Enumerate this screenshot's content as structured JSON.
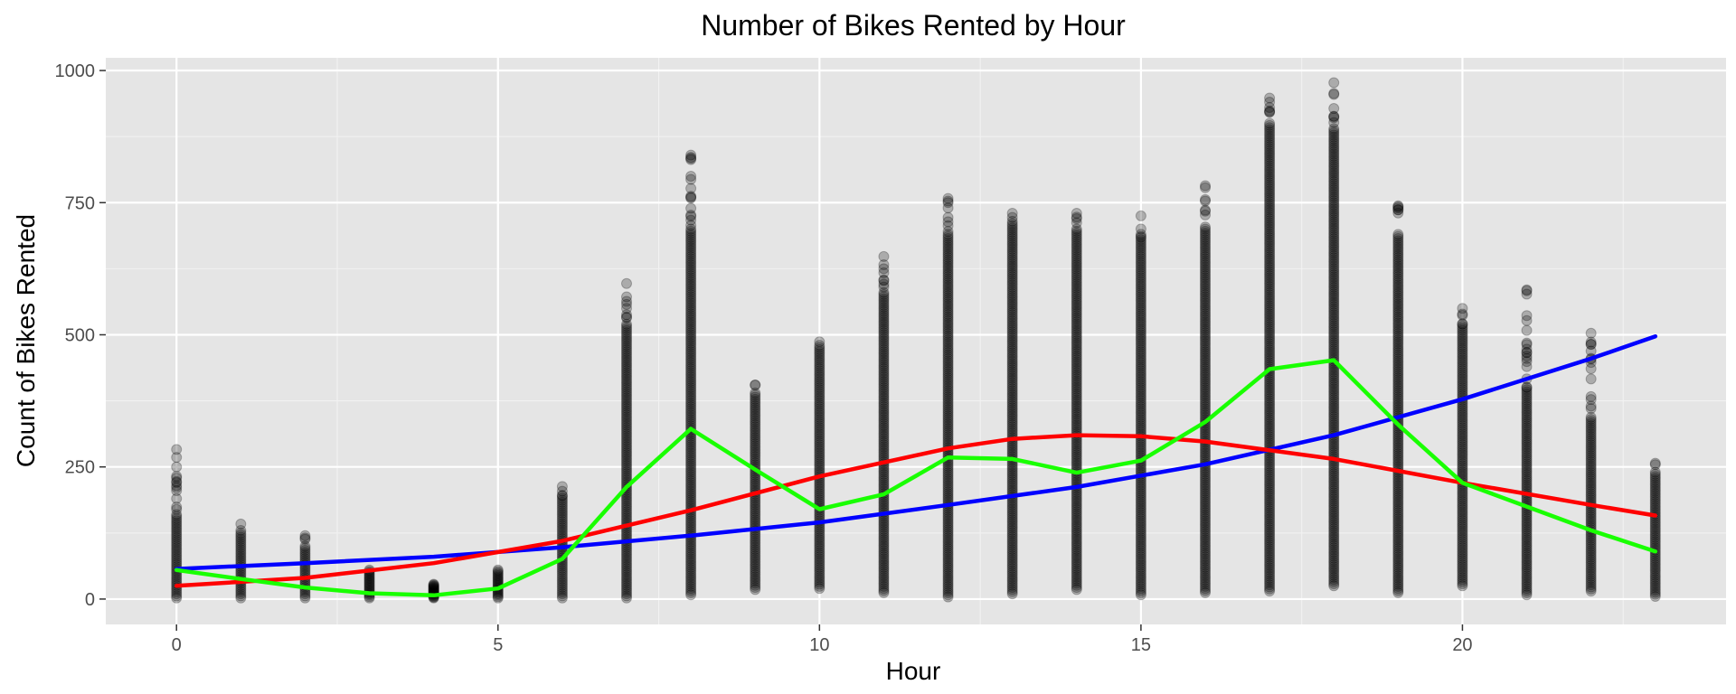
{
  "chart_data": {
    "type": "scatter",
    "title": "Number of Bikes Rented by Hour",
    "xlabel": "Hour",
    "ylabel": "Count of Bikes Rented",
    "xlim": [
      -1.1,
      24.1
    ],
    "ylim": [
      -48,
      1024
    ],
    "x_ticks": [
      0,
      5,
      10,
      15,
      20
    ],
    "y_ticks": [
      0,
      250,
      500,
      750,
      1000
    ],
    "x_tick_labels": [
      "0",
      "5",
      "10",
      "15",
      "20"
    ],
    "y_tick_labels": [
      "0",
      "250",
      "500",
      "750",
      "1000"
    ],
    "grid": true,
    "legend": "none",
    "scatter": {
      "color": "#000000",
      "opacity": 0.25,
      "hours": [
        {
          "hour": 0,
          "min": 2,
          "max": 283,
          "dense_to": 160,
          "outliers": [
            205,
            250,
            283
          ]
        },
        {
          "hour": 1,
          "min": 2,
          "max": 142,
          "dense_to": 125,
          "outliers": [
            142
          ]
        },
        {
          "hour": 2,
          "min": 2,
          "max": 120,
          "dense_to": 100,
          "outliers": [
            120
          ]
        },
        {
          "hour": 3,
          "min": 2,
          "max": 60,
          "dense_to": 55,
          "outliers": []
        },
        {
          "hour": 4,
          "min": 2,
          "max": 30,
          "dense_to": 28,
          "outliers": []
        },
        {
          "hour": 5,
          "min": 2,
          "max": 60,
          "dense_to": 55,
          "outliers": []
        },
        {
          "hour": 6,
          "min": 2,
          "max": 213,
          "dense_to": 195,
          "outliers": [
            213
          ]
        },
        {
          "hour": 7,
          "min": 2,
          "max": 597,
          "dense_to": 520,
          "outliers": [
            550,
            597
          ]
        },
        {
          "hour": 8,
          "min": 8,
          "max": 840,
          "dense_to": 700,
          "outliers": [
            760,
            800,
            840
          ]
        },
        {
          "hour": 9,
          "min": 18,
          "max": 405,
          "dense_to": 390,
          "outliers": [
            405
          ]
        },
        {
          "hour": 10,
          "min": 20,
          "max": 495,
          "dense_to": 480,
          "outliers": []
        },
        {
          "hour": 11,
          "min": 12,
          "max": 648,
          "dense_to": 580,
          "outliers": [
            625,
            648
          ]
        },
        {
          "hour": 12,
          "min": 4,
          "max": 758,
          "dense_to": 690,
          "outliers": [
            740,
            758
          ]
        },
        {
          "hour": 13,
          "min": 10,
          "max": 730,
          "dense_to": 710,
          "outliers": [
            730
          ]
        },
        {
          "hour": 14,
          "min": 18,
          "max": 730,
          "dense_to": 700,
          "outliers": [
            730
          ]
        },
        {
          "hour": 15,
          "min": 8,
          "max": 725,
          "dense_to": 680,
          "outliers": [
            725
          ]
        },
        {
          "hour": 16,
          "min": 12,
          "max": 782,
          "dense_to": 700,
          "outliers": [
            782
          ]
        },
        {
          "hour": 17,
          "min": 15,
          "max": 948,
          "dense_to": 900,
          "outliers": [
            930,
            948
          ]
        },
        {
          "hour": 18,
          "min": 25,
          "max": 977,
          "dense_to": 890,
          "outliers": [
            977
          ]
        },
        {
          "hour": 19,
          "min": 12,
          "max": 744,
          "dense_to": 690,
          "outliers": [
            744
          ]
        },
        {
          "hour": 20,
          "min": 25,
          "max": 550,
          "dense_to": 520,
          "outliers": [
            550
          ]
        },
        {
          "hour": 21,
          "min": 8,
          "max": 585,
          "dense_to": 400,
          "outliers": [
            455,
            585
          ]
        },
        {
          "hour": 22,
          "min": 15,
          "max": 503,
          "dense_to": 340,
          "outliers": [
            503
          ]
        },
        {
          "hour": 23,
          "min": 5,
          "max": 257,
          "dense_to": 240,
          "outliers": [
            257
          ]
        }
      ]
    },
    "series": [
      {
        "color": "#0000ff",
        "x": [
          0,
          2,
          4,
          6,
          8,
          10,
          12,
          14,
          16,
          18,
          20,
          22,
          23
        ],
        "values": [
          57,
          68,
          80,
          98,
          120,
          145,
          178,
          212,
          255,
          310,
          378,
          455,
          497
        ]
      },
      {
        "color": "#ff0000",
        "x": [
          0,
          2,
          4,
          6,
          8,
          10,
          12,
          13,
          14,
          15,
          16,
          18,
          20,
          22,
          23
        ],
        "values": [
          25,
          40,
          68,
          110,
          168,
          232,
          285,
          303,
          310,
          308,
          298,
          265,
          220,
          178,
          158
        ]
      },
      {
        "color": "#19ff00",
        "x": [
          0,
          1,
          2,
          3,
          4,
          5,
          6,
          7,
          8,
          9,
          10,
          11,
          12,
          13,
          14,
          15,
          16,
          17,
          18,
          19,
          20,
          21,
          22,
          23
        ],
        "values": [
          55,
          38,
          22,
          11,
          7,
          20,
          76,
          212,
          322,
          245,
          170,
          198,
          268,
          265,
          239,
          262,
          335,
          435,
          452,
          330,
          220,
          175,
          130,
          90
        ]
      }
    ]
  }
}
